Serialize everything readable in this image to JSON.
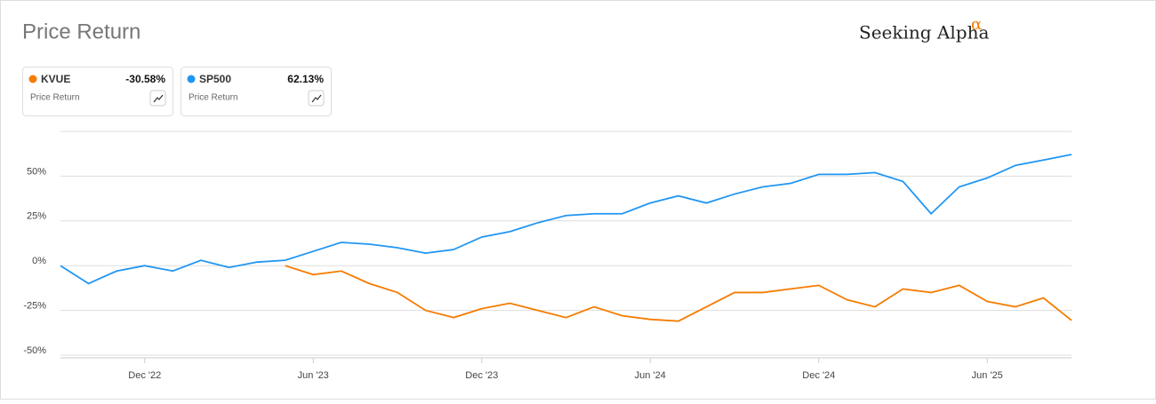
{
  "header": {
    "title": "Price Return",
    "logo": "Seeking Alpha",
    "logo_mark": "α"
  },
  "chart_data": {
    "type": "line",
    "x": [
      "2022-09",
      "2022-10",
      "2022-11",
      "2022-12",
      "2023-01",
      "2023-02",
      "2023-03",
      "2023-04",
      "2023-05",
      "2023-06",
      "2023-07",
      "2023-08",
      "2023-09",
      "2023-10",
      "2023-11",
      "2023-12",
      "2024-01",
      "2024-02",
      "2024-03",
      "2024-04",
      "2024-05",
      "2024-06",
      "2024-07",
      "2024-08",
      "2024-09",
      "2024-10",
      "2024-11",
      "2024-12",
      "2025-01",
      "2025-02",
      "2025-03",
      "2025-04",
      "2025-05",
      "2025-06",
      "2025-07",
      "2025-08",
      "2025-09"
    ],
    "series": [
      {
        "name": "KVUE",
        "color": "#f57c00",
        "legend_value": "-30.58%",
        "legend_caption": "Price Return",
        "values": [
          null,
          null,
          null,
          null,
          null,
          null,
          null,
          null,
          0,
          -5,
          -3,
          -10,
          -15,
          -25,
          -29,
          -24,
          -21,
          -25,
          -29,
          -23,
          -28,
          -30,
          -31,
          -23,
          -15,
          -15,
          -13,
          -11,
          -19,
          -23,
          -13,
          -15,
          -11,
          -20,
          -23,
          -18,
          -30.58
        ]
      },
      {
        "name": "SP500",
        "color": "#2196f3",
        "legend_value": "62.13%",
        "legend_caption": "Price Return",
        "values": [
          0,
          -10,
          -3,
          0,
          -3,
          3,
          -1,
          2,
          3,
          8,
          13,
          12,
          10,
          7,
          9,
          16,
          19,
          24,
          28,
          29,
          29,
          35,
          39,
          35,
          40,
          44,
          46,
          51,
          51,
          52,
          47,
          29,
          44,
          49,
          56,
          59,
          62.13
        ]
      }
    ],
    "xlim": [
      "2022-09",
      "2025-09"
    ],
    "xticks": [
      {
        "value": "2022-12",
        "label": "Dec '22"
      },
      {
        "value": "2023-06",
        "label": "Jun '23"
      },
      {
        "value": "2023-12",
        "label": "Dec '23"
      },
      {
        "value": "2024-06",
        "label": "Jun '24"
      },
      {
        "value": "2024-12",
        "label": "Dec '24"
      },
      {
        "value": "2025-06",
        "label": "Jun '25"
      }
    ],
    "ylim": [
      -50,
      75
    ],
    "yticks": [
      {
        "value": -50,
        "label": "-50%"
      },
      {
        "value": -25,
        "label": "-25%"
      },
      {
        "value": 0,
        "label": "0%"
      },
      {
        "value": 25,
        "label": "25%"
      },
      {
        "value": 50,
        "label": "50%"
      }
    ],
    "grid": true
  }
}
